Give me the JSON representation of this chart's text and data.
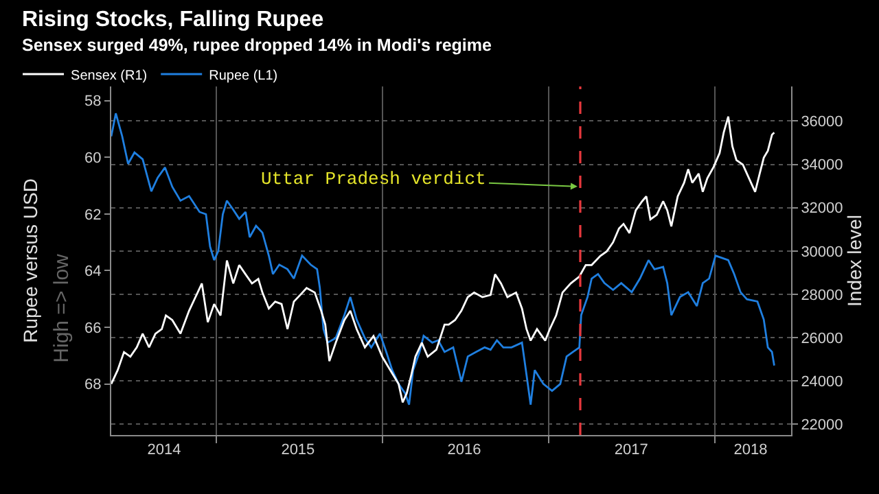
{
  "chart_data": {
    "type": "line",
    "title": "Rising Stocks, Falling Rupee",
    "subtitle": "Sensex surged 49%, rupee dropped 14% in Modi's regime",
    "ylabel": "Rupee versus USD",
    "y2label": "Index level",
    "annotations": [
      "High => low"
    ],
    "legend": "top left",
    "grid": true,
    "xlim": [
      "2014-05-16",
      "2018-06-17"
    ],
    "xticks": [
      {
        "value": "2015-01-01",
        "label": null
      },
      {
        "value": "2016-01-01",
        "label": null
      },
      {
        "value": "2017-01-01",
        "label": null
      },
      {
        "value": "2018-01-01",
        "label": null
      },
      {
        "value": "2014-09-09",
        "label": "2014"
      },
      {
        "value": "2015-06-30",
        "label": "2015"
      },
      {
        "value": "2016-06-29",
        "label": "2016"
      },
      {
        "value": "2017-07-01",
        "label": "2017"
      },
      {
        "value": "2018-03-20",
        "label": "2018"
      }
    ],
    "ylim": [
      69.8,
      57.5
    ],
    "yticks": [
      58,
      60,
      62,
      64,
      66,
      68
    ],
    "y2lim": [
      21500,
      37600
    ],
    "y2ticks": [
      22000,
      24000,
      26000,
      28000,
      30000,
      32000,
      34000,
      36000
    ],
    "ref_lines": [
      {
        "axis": "x",
        "value": "2017-03-11",
        "label": "Uttar Pradesh verdict",
        "color": "#e8383d",
        "line_style": "dashed"
      }
    ],
    "series": [
      {
        "name": "Sensex (R1)",
        "color": "#ffffff",
        "axis": "y2",
        "x": [
          "2014-05-16",
          "2014-05-30",
          "2014-06-13",
          "2014-06-27",
          "2014-07-11",
          "2014-07-24",
          "2014-08-07",
          "2014-08-21",
          "2014-09-04",
          "2014-09-13",
          "2014-09-27",
          "2014-10-15",
          "2014-11-03",
          "2014-11-17",
          "2014-12-01",
          "2014-12-14",
          "2014-12-28",
          "2015-01-11",
          "2015-01-25",
          "2015-02-08",
          "2015-02-21",
          "2015-03-07",
          "2015-03-21",
          "2015-04-04",
          "2015-04-13",
          "2015-04-27",
          "2015-05-11",
          "2015-05-25",
          "2015-06-07",
          "2015-06-21",
          "2015-07-05",
          "2015-07-19",
          "2015-08-06",
          "2015-08-20",
          "2015-08-29",
          "2015-09-07",
          "2015-09-21",
          "2015-10-10",
          "2015-10-23",
          "2015-11-06",
          "2015-11-24",
          "2015-12-13",
          "2016-01-01",
          "2016-01-19",
          "2016-02-06",
          "2016-02-15",
          "2016-02-24",
          "2016-03-05",
          "2016-03-14",
          "2016-03-28",
          "2016-04-10",
          "2016-04-29",
          "2016-05-17",
          "2016-05-26",
          "2016-06-09",
          "2016-06-23",
          "2016-07-07",
          "2016-07-21",
          "2016-08-08",
          "2016-08-26",
          "2016-09-05",
          "2016-09-18",
          "2016-10-02",
          "2016-10-21",
          "2016-11-03",
          "2016-11-13",
          "2016-11-22",
          "2016-12-06",
          "2016-12-24",
          "2017-01-03",
          "2017-01-17",
          "2017-01-31",
          "2017-02-18",
          "2017-03-09",
          "2017-03-23",
          "2017-04-05",
          "2017-04-24",
          "2017-05-08",
          "2017-05-22",
          "2017-06-04",
          "2017-06-14",
          "2017-06-27",
          "2017-07-11",
          "2017-07-25",
          "2017-08-03",
          "2017-08-12",
          "2017-08-26",
          "2017-09-09",
          "2017-09-18",
          "2017-09-27",
          "2017-10-11",
          "2017-10-25",
          "2017-11-03",
          "2017-11-12",
          "2017-11-26",
          "2017-12-05",
          "2017-12-15",
          "2017-12-29",
          "2018-01-11",
          "2018-01-20",
          "2018-01-30",
          "2018-02-08",
          "2018-02-17",
          "2018-03-03",
          "2018-03-12",
          "2018-03-21",
          "2018-03-30",
          "2018-04-09",
          "2018-04-18",
          "2018-04-27",
          "2018-05-06",
          "2018-05-11"
        ],
        "values": [
          23860,
          24490,
          25330,
          25120,
          25550,
          26180,
          25550,
          26180,
          26390,
          27020,
          26810,
          26180,
          27240,
          27870,
          28500,
          26710,
          27550,
          27020,
          29560,
          28500,
          29350,
          28920,
          28500,
          28710,
          28080,
          27340,
          27660,
          27550,
          26390,
          27660,
          27970,
          28290,
          28080,
          27240,
          26600,
          24910,
          25760,
          26810,
          27240,
          26390,
          25550,
          26070,
          25120,
          24490,
          23860,
          23010,
          23430,
          24280,
          25120,
          25760,
          25120,
          25440,
          26600,
          26600,
          26810,
          27240,
          27870,
          28080,
          27870,
          27970,
          28920,
          28500,
          27870,
          28080,
          27340,
          26390,
          25860,
          26390,
          25860,
          26390,
          27020,
          28080,
          28500,
          28820,
          29350,
          29350,
          29770,
          29980,
          30400,
          31040,
          31250,
          30830,
          31880,
          32300,
          32520,
          31460,
          31670,
          32300,
          31880,
          31140,
          32520,
          33150,
          33780,
          33150,
          33570,
          32730,
          33360,
          33890,
          34520,
          35470,
          36210,
          34840,
          34200,
          33990,
          33570,
          33150,
          32730,
          33570,
          34310,
          34630,
          35370,
          35470
        ]
      },
      {
        "name": "Rupee (L1)",
        "color": "#1f7fe0",
        "x": [
          "2014-05-16",
          "2014-05-26",
          "2014-06-09",
          "2014-06-22",
          "2014-07-06",
          "2014-07-24",
          "2014-08-12",
          "2014-08-26",
          "2014-09-11",
          "2014-09-27",
          "2014-10-15",
          "2014-11-03",
          "2014-11-26",
          "2014-12-10",
          "2014-12-19",
          "2014-12-28",
          "2015-01-06",
          "2015-01-16",
          "2015-01-25",
          "2015-02-08",
          "2015-02-21",
          "2015-03-07",
          "2015-03-16",
          "2015-03-30",
          "2015-04-13",
          "2015-04-27",
          "2015-05-06",
          "2015-05-20",
          "2015-06-07",
          "2015-06-21",
          "2015-07-09",
          "2015-07-28",
          "2015-08-11",
          "2015-08-17",
          "2015-08-25",
          "2015-09-03",
          "2015-09-21",
          "2015-10-10",
          "2015-10-23",
          "2015-11-06",
          "2015-11-24",
          "2015-12-08",
          "2015-12-27",
          "2016-01-10",
          "2016-01-23",
          "2016-02-06",
          "2016-02-20",
          "2016-02-29",
          "2016-03-09",
          "2016-03-23",
          "2016-04-01",
          "2016-04-20",
          "2016-05-03",
          "2016-05-17",
          "2016-06-05",
          "2016-06-23",
          "2016-07-07",
          "2016-07-25",
          "2016-08-13",
          "2016-08-26",
          "2016-09-09",
          "2016-09-23",
          "2016-10-11",
          "2016-11-03",
          "2016-11-13",
          "2016-11-22",
          "2016-12-01",
          "2016-12-20",
          "2017-01-08",
          "2017-01-26",
          "2017-02-09",
          "2017-02-23",
          "2017-03-09",
          "2017-03-13",
          "2017-03-27",
          "2017-04-05",
          "2017-04-19",
          "2017-05-03",
          "2017-05-22",
          "2017-06-09",
          "2017-07-02",
          "2017-07-20",
          "2017-08-08",
          "2017-08-21",
          "2017-09-09",
          "2017-09-18",
          "2017-09-27",
          "2017-10-16",
          "2017-11-03",
          "2017-11-22",
          "2017-12-05",
          "2017-12-19",
          "2018-01-02",
          "2018-01-16",
          "2018-01-30",
          "2018-02-12",
          "2018-02-26",
          "2018-03-12",
          "2018-04-04",
          "2018-04-18",
          "2018-04-27",
          "2018-05-06",
          "2018-05-11"
        ],
        "values": [
          59.26,
          58.45,
          59.26,
          60.23,
          59.83,
          60.07,
          61.2,
          60.72,
          60.36,
          61.04,
          61.53,
          61.37,
          61.93,
          62.01,
          63.15,
          63.63,
          63.31,
          62.01,
          61.53,
          61.85,
          62.17,
          61.93,
          62.82,
          62.42,
          62.66,
          63.47,
          64.12,
          63.79,
          63.95,
          64.28,
          63.47,
          63.79,
          63.95,
          64.6,
          66.06,
          66.54,
          66.38,
          65.57,
          64.93,
          65.73,
          66.38,
          66.71,
          66.22,
          66.87,
          67.51,
          68.0,
          68.32,
          68.73,
          67.51,
          66.87,
          66.3,
          66.54,
          66.46,
          66.87,
          66.71,
          67.92,
          67.03,
          66.87,
          66.71,
          66.79,
          66.46,
          66.71,
          66.71,
          66.54,
          67.68,
          68.73,
          67.51,
          68.0,
          68.24,
          68.0,
          67.03,
          66.87,
          66.71,
          65.57,
          64.93,
          64.28,
          64.12,
          64.44,
          64.68,
          64.44,
          64.76,
          64.28,
          63.63,
          63.95,
          63.87,
          64.44,
          65.57,
          64.93,
          64.76,
          65.25,
          64.44,
          64.28,
          63.47,
          63.55,
          63.63,
          64.12,
          64.76,
          65.01,
          65.09,
          65.73,
          66.71,
          66.87,
          67.35
        ]
      }
    ]
  }
}
